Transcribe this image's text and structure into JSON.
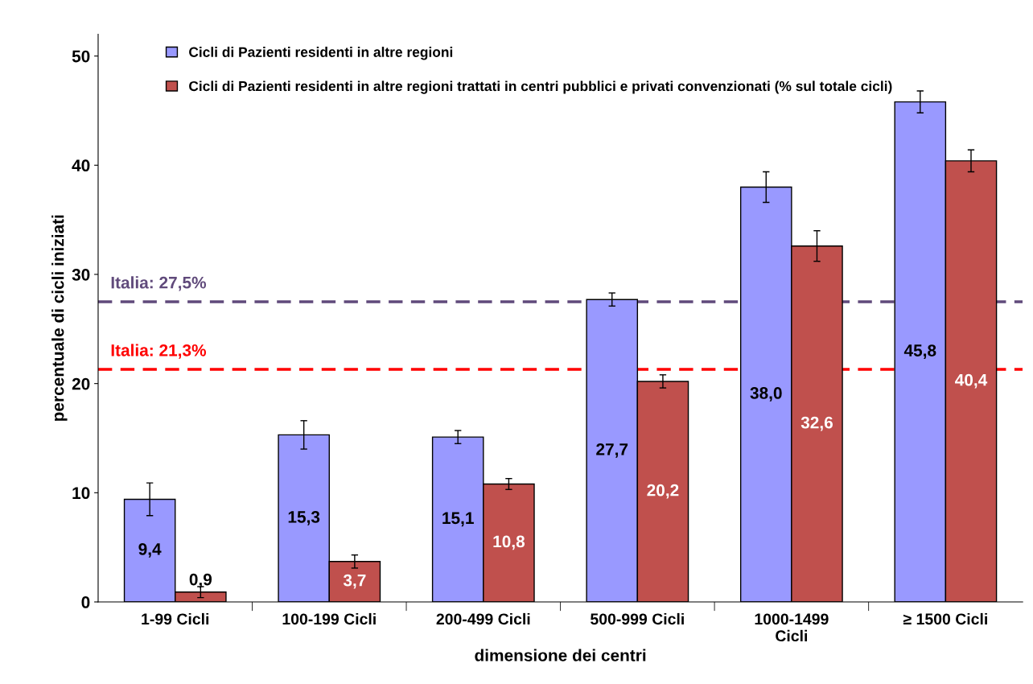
{
  "chart_data": {
    "type": "bar",
    "xlabel": "dimensione dei centri",
    "ylabel": "percentuale di cicli iniziati",
    "categories": [
      "1-99 Cicli",
      "100-199 Cicli",
      "200-499 Cicli",
      "500-999 Cicli",
      "1000-1499\nCicli",
      "≥ 1500 Cicli"
    ],
    "series": [
      {
        "name": "Cicli di Pazienti residenti in altre regioni",
        "color": "#9999ff",
        "values": [
          9.4,
          15.3,
          15.1,
          27.7,
          38.0,
          45.8
        ],
        "errors": [
          1.5,
          1.3,
          0.6,
          0.6,
          1.4,
          1.0
        ],
        "value_labels": [
          "9,4",
          "15,3",
          "15,1",
          "27,7",
          "38,0",
          "45,8"
        ]
      },
      {
        "name": "Cicli di Pazienti residenti in altre regioni trattati in centri pubblici e privati convenzionati (% sul totale cicli)",
        "color": "#c0504d",
        "values": [
          0.9,
          3.7,
          10.8,
          20.2,
          32.6,
          40.4
        ],
        "errors": [
          0.5,
          0.6,
          0.5,
          0.6,
          1.4,
          1.0
        ],
        "value_labels": [
          "0,9",
          "3,7",
          "10,8",
          "20,2",
          "32,6",
          "40,4"
        ]
      }
    ],
    "ylim": [
      0,
      52
    ],
    "yticks": [
      0,
      10,
      20,
      30,
      40,
      50
    ],
    "ref_lines": [
      {
        "axis": "y",
        "value": 27.5,
        "label": "Italia: 27,5%",
        "color": "#604a7b",
        "line_style": "dashed"
      },
      {
        "axis": "y",
        "value": 21.3,
        "label": "Italia: 21,3%",
        "color": "#ff0000",
        "line_style": "dashed"
      }
    ],
    "legend": "top left",
    "grid": false
  }
}
